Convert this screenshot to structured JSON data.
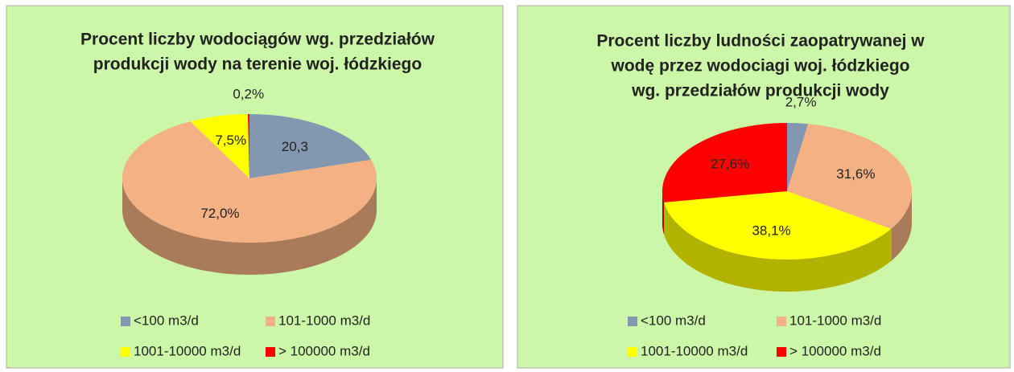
{
  "chart_data": [
    {
      "type": "pie3d",
      "title": [
        "Procent liczby wodociągów wg. przedziałów",
        "produkcji  wody na terenie woj. łódzkiego"
      ],
      "categories": [
        "<100 m3/d",
        "101-1000 m3/d",
        "1001-10000 m3/d",
        "> 100000 m3/d"
      ],
      "values": [
        20.3,
        72.0,
        7.5,
        0.2
      ],
      "value_labels": [
        "20,3",
        "72,0%",
        "7,5%",
        "0,2%"
      ],
      "colors": [
        "#8497b0",
        "#f4b183",
        "#ffff00",
        "#ff0000"
      ]
    },
    {
      "type": "pie3d",
      "title": [
        "Procent liczby ludności zaopatrywanej w",
        "wodę przez wodociagi  woj. łódzkiego",
        "wg. przedziałów produkcji  wody"
      ],
      "categories": [
        "<100 m3/d",
        "101-1000 m3/d",
        "1001-10000 m3/d",
        "> 100000 m3/d"
      ],
      "values": [
        2.7,
        31.6,
        38.1,
        27.6
      ],
      "value_labels": [
        "2,7%",
        "31,6%",
        "38,1%",
        "27,6%"
      ],
      "colors": [
        "#8497b0",
        "#f4b183",
        "#ffff00",
        "#ff0000"
      ]
    }
  ]
}
